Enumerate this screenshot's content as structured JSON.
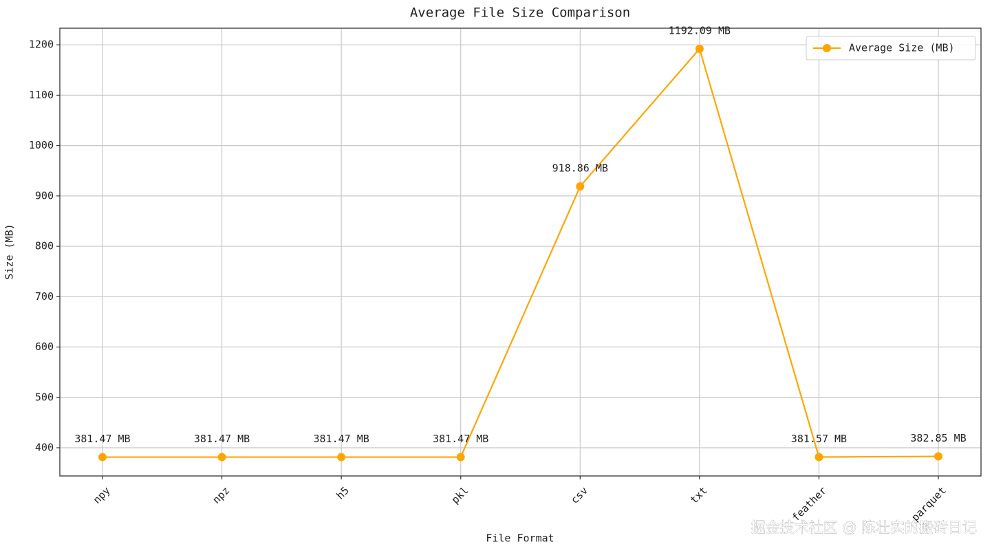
{
  "chart_data": {
    "type": "line",
    "title": "Average File Size Comparison",
    "x_label": "File Format",
    "y_label": "Size (MB)",
    "categories": [
      "npy",
      "npz",
      "h5",
      "pkl",
      "csv",
      "txt",
      "feather",
      "parquet"
    ],
    "series": [
      {
        "name": "Average Size (MB)",
        "color": "#ffa500",
        "values": [
          381.47,
          381.47,
          381.47,
          381.47,
          918.86,
          1192.09,
          381.57,
          382.85
        ],
        "value_labels": [
          "381.47 MB",
          "381.47 MB",
          "381.47 MB",
          "381.47 MB",
          "918.86 MB",
          "1192.09 MB",
          "381.57 MB",
          "382.85 MB"
        ]
      }
    ],
    "ylim": [
      344,
      1233
    ],
    "yticks": [
      400,
      500,
      600,
      700,
      800,
      900,
      1000,
      1100,
      1200
    ],
    "grid": true,
    "legend": "upper right",
    "watermark": "掘金技术社区 @ 陈壮实的搬砖日记"
  }
}
